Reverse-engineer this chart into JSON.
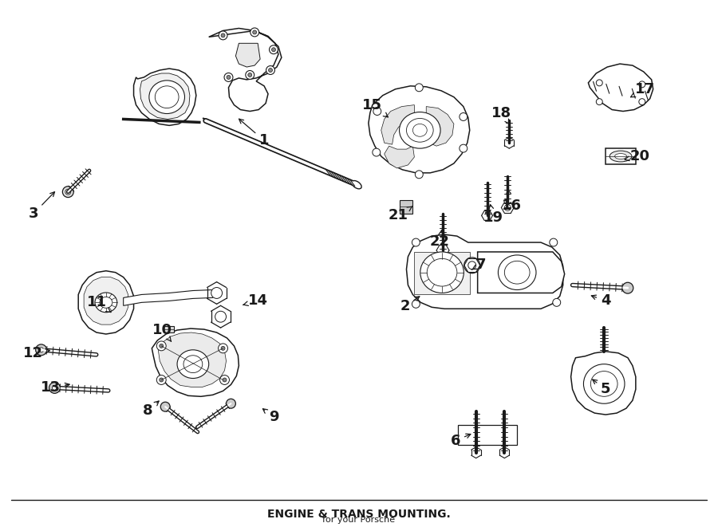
{
  "bg_color": "#ffffff",
  "line_color": "#1a1a1a",
  "fig_width": 9.0,
  "fig_height": 6.61,
  "dpi": 100,
  "label_fontsize": 13,
  "parts_labels": [
    [
      "1",
      330,
      175,
      295,
      145,
      "left"
    ],
    [
      "2",
      508,
      385,
      530,
      370,
      "left"
    ],
    [
      "3",
      38,
      268,
      68,
      237,
      "left"
    ],
    [
      "4",
      762,
      378,
      740,
      370,
      "right"
    ],
    [
      "5",
      762,
      490,
      742,
      475,
      "right"
    ],
    [
      "6",
      572,
      555,
      595,
      545,
      "left"
    ],
    [
      "7",
      604,
      332,
      590,
      340,
      "right"
    ],
    [
      "8",
      183,
      517,
      200,
      502,
      "left"
    ],
    [
      "9",
      342,
      525,
      325,
      512,
      "right"
    ],
    [
      "10",
      201,
      415,
      213,
      430,
      "left"
    ],
    [
      "11",
      118,
      380,
      137,
      393,
      "left"
    ],
    [
      "12",
      38,
      444,
      63,
      440,
      "left"
    ],
    [
      "13",
      60,
      488,
      88,
      483,
      "left"
    ],
    [
      "14",
      322,
      378,
      300,
      384,
      "right"
    ],
    [
      "15",
      467,
      130,
      490,
      148,
      "left"
    ],
    [
      "16",
      643,
      258,
      637,
      233,
      "right"
    ],
    [
      "17",
      812,
      110,
      790,
      122,
      "right"
    ],
    [
      "18",
      630,
      140,
      641,
      155,
      "left"
    ],
    [
      "19",
      620,
      273,
      615,
      252,
      "right"
    ],
    [
      "20",
      805,
      195,
      782,
      200,
      "right"
    ],
    [
      "21",
      500,
      270,
      518,
      258,
      "left"
    ],
    [
      "22",
      552,
      303,
      555,
      285,
      "left"
    ]
  ]
}
